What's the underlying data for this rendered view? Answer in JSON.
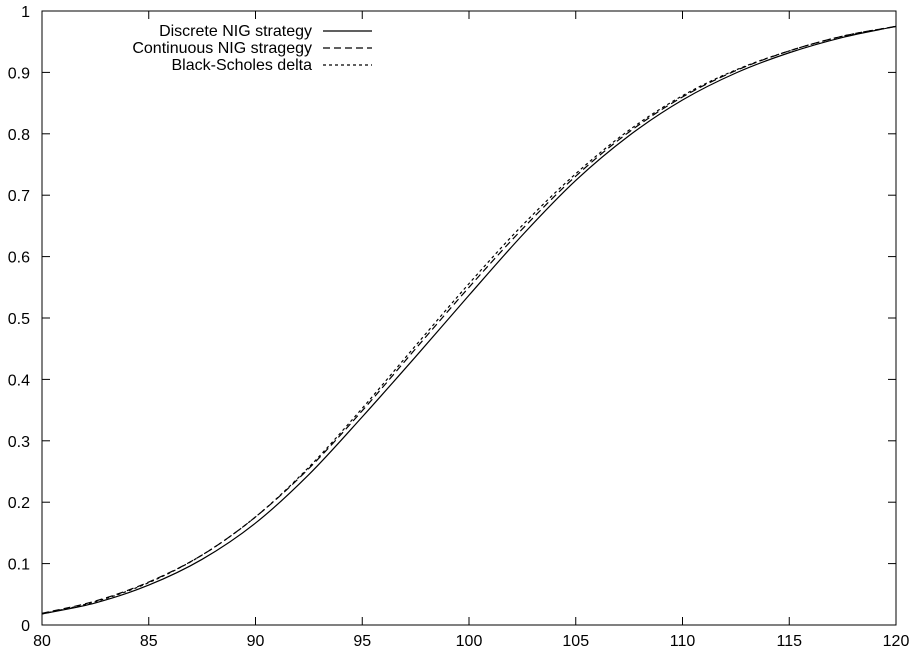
{
  "chart_data": {
    "type": "line",
    "title": "",
    "xlabel": "",
    "ylabel": "",
    "xlim": [
      80,
      120
    ],
    "ylim": [
      0,
      1
    ],
    "grid": false,
    "legend_position": "top-left",
    "x_ticks": [
      "80",
      "85",
      "90",
      "95",
      "100",
      "105",
      "110",
      "115",
      "120"
    ],
    "y_ticks": [
      "0",
      "0.1",
      "0.2",
      "0.3",
      "0.4",
      "0.5",
      "0.6",
      "0.7",
      "0.8",
      "0.9",
      "1"
    ],
    "x": [
      80,
      82.5,
      85,
      87.5,
      90,
      92.5,
      95,
      97.5,
      100,
      102.5,
      105,
      107.5,
      110,
      112.5,
      115,
      117.5,
      120
    ],
    "series": [
      {
        "name": "Discrete NIG strategy",
        "dash": "solid",
        "values": [
          0.018,
          0.036,
          0.065,
          0.107,
          0.166,
          0.245,
          0.339,
          0.437,
          0.537,
          0.635,
          0.724,
          0.797,
          0.855,
          0.899,
          0.932,
          0.957,
          0.975
        ]
      },
      {
        "name": "Continuous NIG stragegy",
        "dash": "dashed",
        "values": [
          0.019,
          0.039,
          0.07,
          0.114,
          0.176,
          0.255,
          0.349,
          0.45,
          0.55,
          0.645,
          0.731,
          0.803,
          0.86,
          0.903,
          0.935,
          0.959,
          0.975
        ]
      },
      {
        "name": "Black-Scholes delta",
        "dash": "dotted",
        "values": [
          0.018,
          0.038,
          0.069,
          0.114,
          0.176,
          0.257,
          0.353,
          0.455,
          0.556,
          0.651,
          0.735,
          0.806,
          0.862,
          0.904,
          0.935,
          0.959,
          0.975
        ]
      }
    ]
  }
}
